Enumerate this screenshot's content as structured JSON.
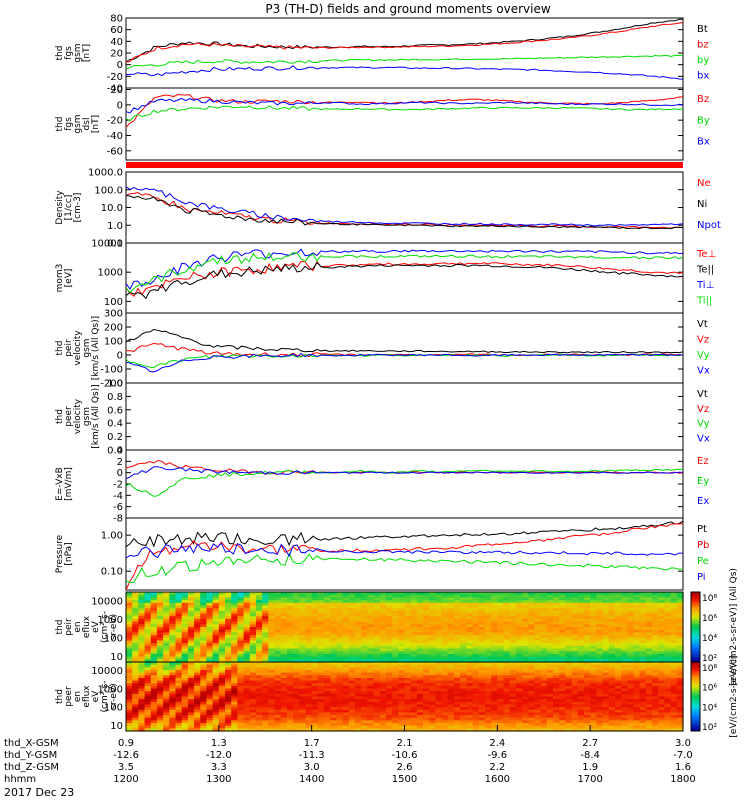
{
  "title": "P3 (TH-D) fields and ground moments overview",
  "date": "2017 Dec 23",
  "colors": {
    "black": "#000000",
    "red": "#ff0000",
    "green": "#00dd00",
    "blue": "#0000ff"
  },
  "chart_data": [
    {
      "type": "line",
      "ylabel": [
        "thd",
        "fgs",
        "gsm",
        "[nT]"
      ],
      "yticks": [
        "80",
        "60",
        "40",
        "20",
        "0",
        "-20",
        "-40"
      ],
      "ylim": [
        -40,
        80
      ],
      "log": false,
      "series": [
        {
          "name": "Bt",
          "color": "black",
          "values": [
            5,
            30,
            38,
            36,
            32,
            31,
            30,
            30,
            31,
            31,
            33,
            34,
            36,
            39,
            43,
            48,
            55,
            63,
            72,
            78
          ]
        },
        {
          "name": "bz",
          "color": "red",
          "values": [
            3,
            28,
            35,
            34,
            31,
            30,
            29,
            29,
            30,
            30,
            31,
            32,
            34,
            37,
            41,
            45,
            51,
            58,
            66,
            72
          ]
        },
        {
          "name": "by",
          "color": "green",
          "values": [
            -5,
            0,
            4,
            6,
            5,
            5,
            6,
            7,
            8,
            8,
            9,
            9,
            10,
            10,
            11,
            12,
            13,
            14,
            15,
            15
          ]
        },
        {
          "name": "bx",
          "color": "blue",
          "values": [
            -15,
            -18,
            -12,
            -8,
            -7,
            -6,
            -5,
            -5,
            -5,
            -5,
            -6,
            -6,
            -7,
            -8,
            -9,
            -11,
            -13,
            -16,
            -20,
            -24
          ]
        }
      ]
    },
    {
      "type": "line",
      "ylabel": [
        "thd",
        "fgs",
        "gsm",
        "dsl",
        "[nT]"
      ],
      "yticks": [
        "20",
        "0",
        "-20",
        "-40",
        "-60"
      ],
      "ylim": [
        -72,
        22
      ],
      "log": false,
      "series": [
        {
          "name": "Bz",
          "color": "red",
          "values": [
            -30,
            10,
            12,
            6,
            4,
            5,
            4,
            3,
            4,
            2,
            4,
            6,
            7,
            5,
            3,
            2,
            1,
            3,
            6,
            10
          ]
        },
        {
          "name": "By",
          "color": "green",
          "values": [
            -20,
            -8,
            -5,
            -3,
            -2,
            -4,
            -5,
            -6,
            -5,
            -6,
            -6,
            -5,
            -4,
            -4,
            -4,
            -4,
            -5,
            -6,
            -6,
            -5
          ]
        },
        {
          "name": "Bx",
          "color": "blue",
          "values": [
            -10,
            5,
            6,
            5,
            3,
            2,
            2,
            3,
            1,
            2,
            3,
            2,
            2,
            3,
            2,
            1,
            1,
            1,
            0,
            0
          ]
        }
      ]
    },
    {
      "type": "line",
      "ylabel": [
        "Density",
        "[1/cc]",
        "[cm-3]"
      ],
      "yticks": [
        "1000.0",
        "100.0",
        "10.0",
        "1.0",
        "0.1"
      ],
      "ylim": [
        0.1,
        1000
      ],
      "log": true,
      "series": [
        {
          "name": "Ne",
          "color": "red",
          "values": [
            60,
            30,
            8,
            5,
            3,
            2,
            1.5,
            1.3,
            1.2,
            1.1,
            1.1,
            1.0,
            1.0,
            1.0,
            0.9,
            0.9,
            0.8,
            0.8,
            0.8,
            0.7
          ]
        },
        {
          "name": "Ni",
          "color": "black",
          "values": [
            50,
            25,
            7,
            4,
            2.5,
            1.8,
            1.4,
            1.2,
            1.1,
            1.0,
            1.0,
            0.9,
            0.9,
            0.9,
            0.8,
            0.8,
            0.8,
            0.7,
            0.7,
            0.7
          ]
        },
        {
          "name": "Npot",
          "color": "blue",
          "values": [
            150,
            80,
            20,
            9,
            5,
            3,
            2,
            1.6,
            1.5,
            1.3,
            1.3,
            1.2,
            1.2,
            1.1,
            1.1,
            1.1,
            1.0,
            1.0,
            1.1,
            1.2
          ]
        }
      ]
    },
    {
      "type": "line",
      "ylabel": [
        "mom3",
        "[eV]"
      ],
      "yticks": [
        "10000",
        "1000",
        "100"
      ],
      "ylim": [
        40,
        10000
      ],
      "log": true,
      "series": [
        {
          "name": "Te⊥",
          "color": "red",
          "values": [
            200,
            250,
            600,
            900,
            1200,
            1400,
            1600,
            1700,
            1800,
            1900,
            1900,
            2000,
            2000,
            1900,
            1800,
            1700,
            1400,
            1200,
            1000,
            900
          ]
        },
        {
          "name": "Te||",
          "color": "black",
          "values": [
            150,
            200,
            500,
            800,
            1000,
            1200,
            1400,
            1500,
            1600,
            1700,
            1700,
            1700,
            1700,
            1600,
            1500,
            1300,
            1100,
            900,
            800,
            700
          ]
        },
        {
          "name": "Ti⊥",
          "color": "blue",
          "values": [
            300,
            600,
            1500,
            3000,
            4000,
            4500,
            5000,
            5000,
            5200,
            5200,
            5300,
            5300,
            5300,
            5200,
            5200,
            5000,
            5000,
            4800,
            4600,
            4500
          ]
        },
        {
          "name": "Ti||",
          "color": "green",
          "values": [
            250,
            500,
            1200,
            2500,
            3000,
            3200,
            3400,
            3500,
            3500,
            3500,
            3500,
            3500,
            3500,
            3400,
            3400,
            3300,
            3300,
            3200,
            3200,
            3100
          ]
        }
      ]
    },
    {
      "type": "line",
      "ylabel": [
        "thd",
        "peir",
        "velocity",
        "gsm",
        "[km/s (All Qs)]"
      ],
      "yticks": [
        "300",
        "200",
        "100",
        "0",
        "-100",
        "-200"
      ],
      "ylim": [
        -200,
        300
      ],
      "log": false,
      "series": [
        {
          "name": "Vt",
          "color": "black",
          "values": [
            100,
            180,
            120,
            60,
            50,
            40,
            35,
            30,
            30,
            28,
            28,
            25,
            25,
            22,
            22,
            20,
            20,
            20,
            20,
            20
          ]
        },
        {
          "name": "Vz",
          "color": "red",
          "values": [
            20,
            80,
            40,
            10,
            5,
            5,
            0,
            5,
            0,
            5,
            0,
            0,
            5,
            0,
            0,
            5,
            0,
            0,
            5,
            0
          ]
        },
        {
          "name": "Vy",
          "color": "green",
          "values": [
            -40,
            -80,
            -30,
            -10,
            -5,
            -5,
            -5,
            0,
            -5,
            0,
            -5,
            0,
            0,
            -5,
            0,
            0,
            -5,
            0,
            0,
            0
          ]
        },
        {
          "name": "Vx",
          "color": "blue",
          "values": [
            -60,
            -120,
            -40,
            -10,
            -10,
            -5,
            0,
            -5,
            0,
            0,
            0,
            0,
            -5,
            0,
            0,
            0,
            0,
            0,
            0,
            0
          ]
        }
      ]
    },
    {
      "type": "line",
      "ylabel": [
        "thd",
        "peer",
        "velocity",
        "gsm",
        "[km/s (All Qs)]"
      ],
      "yticks": [
        "1.0",
        "0.8",
        "0.6",
        "0.4",
        "0.2",
        "0.0"
      ],
      "ylim": [
        0,
        1
      ],
      "log": false,
      "series": [
        {
          "name": "Vt",
          "color": "black",
          "values": []
        },
        {
          "name": "Vz",
          "color": "red",
          "values": []
        },
        {
          "name": "Vy",
          "color": "green",
          "values": []
        },
        {
          "name": "Vx",
          "color": "blue",
          "values": []
        }
      ]
    },
    {
      "type": "line",
      "ylabel": [
        "E=-VxB",
        "[mV/m]"
      ],
      "yticks": [
        "4",
        "2",
        "0",
        "-2",
        "-4",
        "-6",
        "-8"
      ],
      "ylim": [
        -8,
        4
      ],
      "log": false,
      "series": [
        {
          "name": "Ez",
          "color": "red",
          "values": [
            1,
            2,
            1,
            0.5,
            0.2,
            0,
            0.2,
            0,
            0.1,
            0,
            0.1,
            0,
            0.1,
            0,
            0.1,
            0,
            0.1,
            0,
            0.1,
            0
          ]
        },
        {
          "name": "Ey",
          "color": "green",
          "values": [
            -2,
            -4,
            -1,
            -0.5,
            -0.2,
            0,
            0.2,
            0,
            0.3,
            0,
            0.3,
            0.1,
            0.4,
            0.2,
            0.3,
            0.2,
            0.3,
            0.4,
            0.5,
            0.5
          ]
        },
        {
          "name": "Ex",
          "color": "blue",
          "values": [
            -1,
            1,
            0.5,
            0.2,
            0,
            0,
            0,
            0,
            0,
            0,
            0,
            0,
            0,
            0,
            0,
            0,
            0,
            0,
            0,
            0
          ]
        }
      ]
    },
    {
      "type": "line",
      "ylabel": [
        "Pressure",
        "[nPa]"
      ],
      "yticks": [
        "1.00",
        "0.10"
      ],
      "ylim": [
        0.03,
        3
      ],
      "log": true,
      "series": [
        {
          "name": "Pt",
          "color": "black",
          "values": [
            0.5,
            0.7,
            0.8,
            0.8,
            0.75,
            0.75,
            0.78,
            0.8,
            0.85,
            0.9,
            0.95,
            1.0,
            1.05,
            1.1,
            1.2,
            1.3,
            1.45,
            1.6,
            1.9,
            2.3
          ]
        },
        {
          "name": "Pb",
          "color": "red",
          "values": [
            0.01,
            0.35,
            0.5,
            0.45,
            0.4,
            0.38,
            0.37,
            0.37,
            0.38,
            0.38,
            0.42,
            0.45,
            0.5,
            0.6,
            0.7,
            0.85,
            1.0,
            1.3,
            1.7,
            2.2
          ]
        },
        {
          "name": "Pe",
          "color": "green",
          "values": [
            0.06,
            0.1,
            0.14,
            0.17,
            0.2,
            0.21,
            0.22,
            0.22,
            0.22,
            0.21,
            0.2,
            0.19,
            0.18,
            0.17,
            0.16,
            0.15,
            0.14,
            0.13,
            0.12,
            0.11
          ]
        },
        {
          "name": "Pi",
          "color": "blue",
          "values": [
            0.3,
            0.35,
            0.4,
            0.42,
            0.4,
            0.38,
            0.37,
            0.36,
            0.35,
            0.35,
            0.34,
            0.34,
            0.33,
            0.33,
            0.32,
            0.32,
            0.31,
            0.31,
            0.3,
            0.3
          ]
        }
      ]
    },
    {
      "type": "heatmap",
      "ylabel": [
        "thd",
        "peir",
        "en",
        "eflux",
        "eV",
        "(cm²-s-",
        "sr-eV)"
      ],
      "yticks": [
        "10000",
        "1000",
        "100",
        "10"
      ],
      "ylim": [
        5,
        30000
      ],
      "log": true,
      "colorbar": {
        "ticks": [
          "10⁸",
          "10⁶",
          "10⁴",
          "10²"
        ],
        "label": "[eV/(cm2-s-sr-eV)] (All Qs)"
      }
    },
    {
      "type": "heatmap",
      "ylabel": [
        "thd",
        "peer",
        "en",
        "eflux",
        "eV",
        "(cm²-s-",
        "sr-eV)"
      ],
      "yticks": [
        "10000",
        "1000",
        "100",
        "10"
      ],
      "ylim": [
        5,
        30000
      ],
      "log": true,
      "colorbar": {
        "ticks": [
          "10⁸",
          "10⁶",
          "10⁴",
          "10²"
        ],
        "label": "[eV/(cm2-s-sr-eV)]"
      }
    }
  ],
  "x_axis": {
    "hhmm": [
      "1200",
      "1300",
      "1400",
      "1500",
      "1600",
      "1700",
      "1800"
    ],
    "rows": [
      {
        "label": "thd_X-GSM",
        "values": [
          "0.9",
          "1.3",
          "1.7",
          "2.1",
          "2.4",
          "2.7",
          "3.0"
        ]
      },
      {
        "label": "thd_Y-GSM",
        "values": [
          "-12.6",
          "-12.0",
          "-11.3",
          "-10.6",
          "-9.6",
          "-8.4",
          "-7.0"
        ]
      },
      {
        "label": "thd_Z-GSM",
        "values": [
          "3.5",
          "3.3",
          "3.0",
          "2.6",
          "2.2",
          "1.9",
          "1.6"
        ]
      },
      {
        "label": "hhmm",
        "values": [
          "1200",
          "1300",
          "1400",
          "1500",
          "1600",
          "1700",
          "1800"
        ]
      }
    ]
  }
}
